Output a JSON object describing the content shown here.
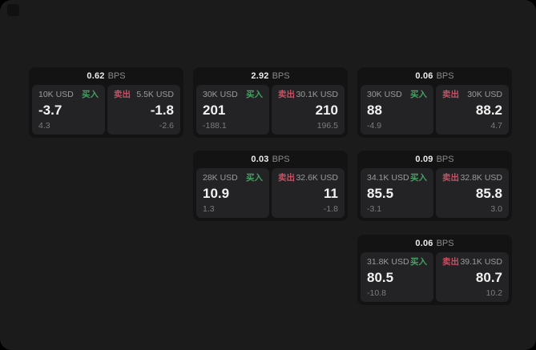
{
  "page": {
    "colors": {
      "outer_background": "#000000",
      "window_background": "#1b1b1c",
      "card_background": "#131314",
      "panel_background": "#232325",
      "accent_green": "#46a065",
      "accent_red": "#c94f63",
      "text_primary": "#f2f2f2",
      "text_secondary": "#9b9b9b",
      "text_muted": "#7c7c7c"
    }
  },
  "cards": [
    {
      "bps_value": "0.62",
      "bps_unit": "BPS",
      "buy": {
        "amount": "10K USD",
        "side_label": "买入",
        "value": "-3.7",
        "change": "4.3"
      },
      "sell": {
        "amount": "5.5K USD",
        "side_label": "卖出",
        "value": "-1.8",
        "change": "-2.6"
      }
    },
    {
      "bps_value": "2.92",
      "bps_unit": "BPS",
      "buy": {
        "amount": "30K USD",
        "side_label": "买入",
        "value": "201",
        "change": "-188.1"
      },
      "sell": {
        "amount": "30.1K USD",
        "side_label": "卖出",
        "value": "210",
        "change": "196.5"
      }
    },
    {
      "bps_value": "0.06",
      "bps_unit": "BPS",
      "buy": {
        "amount": "30K USD",
        "side_label": "买入",
        "value": "88",
        "change": "-4.9"
      },
      "sell": {
        "amount": "30K USD",
        "side_label": "卖出",
        "value": "88.2",
        "change": "4.7"
      }
    },
    {
      "bps_value": "0.03",
      "bps_unit": "BPS",
      "buy": {
        "amount": "28K USD",
        "side_label": "买入",
        "value": "10.9",
        "change": "1.3"
      },
      "sell": {
        "amount": "32.6K USD",
        "side_label": "卖出",
        "value": "11",
        "change": "-1.8"
      }
    },
    {
      "bps_value": "0.09",
      "bps_unit": "BPS",
      "buy": {
        "amount": "34.1K USD",
        "side_label": "买入",
        "value": "85.5",
        "change": "-3.1"
      },
      "sell": {
        "amount": "32.8K USD",
        "side_label": "卖出",
        "value": "85.8",
        "change": "3.0"
      }
    },
    {
      "bps_value": "0.06",
      "bps_unit": "BPS",
      "buy": {
        "amount": "31.8K USD",
        "side_label": "买入",
        "value": "80.5",
        "change": "-10.8"
      },
      "sell": {
        "amount": "39.1K USD",
        "side_label": "卖出",
        "value": "80.7",
        "change": "10.2"
      }
    }
  ]
}
